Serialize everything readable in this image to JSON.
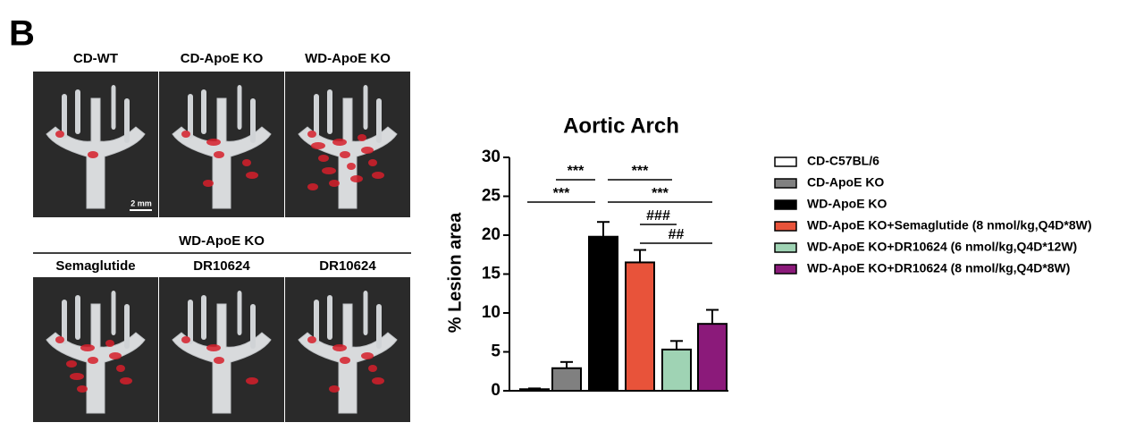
{
  "panel": {
    "letter": "B",
    "top_labels": [
      "CD-WT",
      "CD-ApoE KO",
      "WD-ApoE KO"
    ],
    "scale_bar": "2 mm",
    "group_label": "WD-ApoE KO",
    "bottom_labels": [
      "Semaglutide",
      "DR10624",
      "DR10624"
    ]
  },
  "chart_data": {
    "type": "bar",
    "title": "Aortic Arch",
    "y_label": "% Lesion area",
    "categories": [
      null
    ],
    "series": [
      {
        "name": "CD-C57BL/6",
        "color": "#ffffff",
        "values": [
          0.2
        ],
        "errors": [
          0.1
        ]
      },
      {
        "name": "CD-ApoE KO",
        "color": "#808080",
        "values": [
          2.9
        ],
        "errors": [
          0.8
        ]
      },
      {
        "name": "WD-ApoE KO",
        "color": "#000000",
        "values": [
          19.8
        ],
        "errors": [
          1.9
        ]
      },
      {
        "name": "WD-ApoE KO+Semaglutide (8 nmol/kg,Q4D*8W)",
        "color": "#e8533a",
        "values": [
          16.5
        ],
        "errors": [
          1.6
        ]
      },
      {
        "name": "WD-ApoE KO+DR10624 (6 nmol/kg,Q4D*12W)",
        "color": "#9fd3b4",
        "values": [
          5.3
        ],
        "errors": [
          1.1
        ]
      },
      {
        "name": "WD-ApoE KO+DR10624 (8 nmol/kg,Q4D*8W)",
        "color": "#8b1a7a",
        "values": [
          8.6
        ],
        "errors": [
          1.8
        ]
      }
    ],
    "ylim": [
      0,
      30
    ],
    "yticks": [
      0,
      5,
      10,
      15,
      20,
      25,
      30
    ],
    "annotations": [
      "***",
      "***",
      "***",
      "***",
      "###",
      "##"
    ]
  }
}
